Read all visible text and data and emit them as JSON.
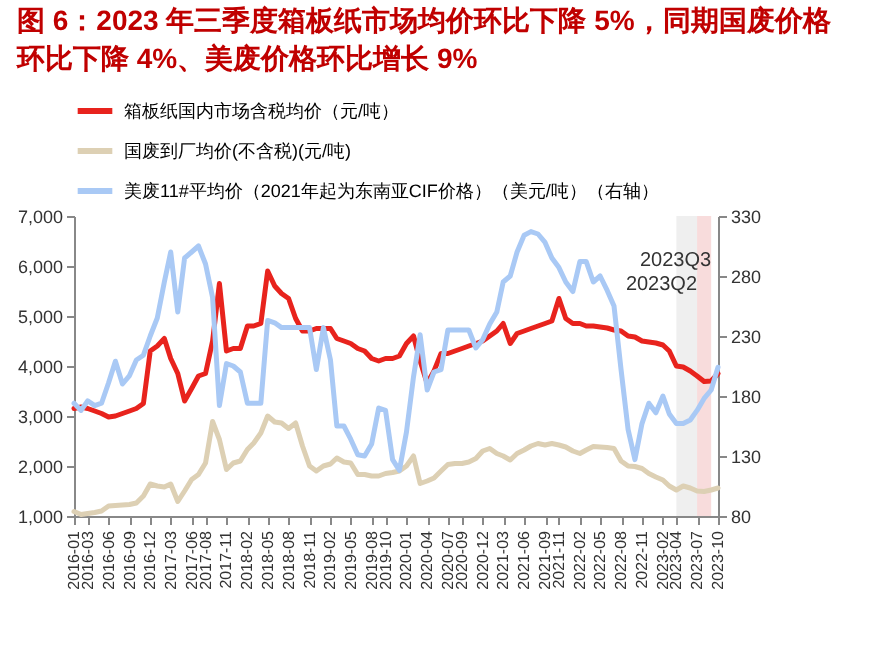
{
  "chart_data": {
    "type": "line",
    "title": "图 6：2023 年三季度箱板纸市场均价环比下降 5%，同期国废价格环比下降 4%、美废价格环比增长 9%",
    "x": [
      "2016-01",
      "2016-02",
      "2016-03",
      "2016-04",
      "2016-05",
      "2016-06",
      "2016-07",
      "2016-08",
      "2016-09",
      "2016-10",
      "2016-11",
      "2016-12",
      "2017-01",
      "2017-02",
      "2017-03",
      "2017-04",
      "2017-05",
      "2017-06",
      "2017-07",
      "2017-08",
      "2017-09",
      "2017-10",
      "2017-11",
      "2017-12",
      "2018-01",
      "2018-02",
      "2018-03",
      "2018-04",
      "2018-05",
      "2018-06",
      "2018-07",
      "2018-08",
      "2018-09",
      "2018-10",
      "2018-11",
      "2018-12",
      "2019-01",
      "2019-02",
      "2019-03",
      "2019-04",
      "2019-05",
      "2019-06",
      "2019-07",
      "2019-08",
      "2019-09",
      "2019-10",
      "2019-11",
      "2019-12",
      "2020-01",
      "2020-02",
      "2020-03",
      "2020-04",
      "2020-05",
      "2020-06",
      "2020-07",
      "2020-08",
      "2020-09",
      "2020-10",
      "2020-11",
      "2020-12",
      "2021-01",
      "2021-02",
      "2021-03",
      "2021-04",
      "2021-05",
      "2021-06",
      "2021-07",
      "2021-08",
      "2021-09",
      "2021-10",
      "2021-11",
      "2021-12",
      "2022-01",
      "2022-02",
      "2022-03",
      "2022-04",
      "2022-05",
      "2022-06",
      "2022-07",
      "2022-08",
      "2022-09",
      "2022-10",
      "2022-11",
      "2022-12",
      "2023-01",
      "2023-02",
      "2023-03",
      "2023-04",
      "2023-05",
      "2023-06",
      "2023-07",
      "2023-08",
      "2023-09",
      "2023-10"
    ],
    "series": [
      {
        "name": "箱板纸国内市场含税均价（元/吨）",
        "color": "#e8231d",
        "values": [
          3150,
          3180,
          3150,
          3100,
          3050,
          2980,
          3000,
          3050,
          3100,
          3150,
          3250,
          4300,
          4400,
          4550,
          4150,
          3850,
          3300,
          3550,
          3800,
          3850,
          4500,
          5650,
          4300,
          4350,
          4350,
          4800,
          4800,
          4850,
          5900,
          5600,
          5450,
          5350,
          4950,
          4700,
          4700,
          4750,
          4750,
          4750,
          4550,
          4500,
          4450,
          4350,
          4300,
          4150,
          4100,
          4150,
          4150,
          4200,
          4450,
          4600,
          4100,
          3650,
          3900,
          4250,
          4250,
          4300,
          4350,
          4400,
          4450,
          4500,
          4600,
          4700,
          4850,
          4450,
          4650,
          4700,
          4750,
          4800,
          4850,
          4900,
          5350,
          4950,
          4850,
          4850,
          4800,
          4800,
          4780,
          4760,
          4720,
          4700,
          4600,
          4580,
          4500,
          4480,
          4460,
          4420,
          4300,
          4000,
          3980,
          3900,
          3800,
          3690,
          3700,
          3850
        ]
      },
      {
        "name": "国废到厂均价(不含税)(元/吨)",
        "color": "#ddd0b4",
        "values": [
          1090,
          1030,
          1050,
          1070,
          1100,
          1200,
          1210,
          1220,
          1230,
          1260,
          1400,
          1640,
          1600,
          1580,
          1640,
          1290,
          1500,
          1730,
          1830,
          2060,
          2890,
          2530,
          1930,
          2060,
          2100,
          2330,
          2460,
          2660,
          3000,
          2880,
          2860,
          2750,
          2860,
          2400,
          2000,
          1900,
          2000,
          2040,
          2160,
          2080,
          2060,
          1830,
          1830,
          1800,
          1800,
          1850,
          1870,
          1900,
          2000,
          2200,
          1650,
          1700,
          1760,
          1900,
          2030,
          2050,
          2050,
          2080,
          2150,
          2300,
          2350,
          2250,
          2200,
          2120,
          2250,
          2320,
          2400,
          2450,
          2420,
          2450,
          2420,
          2380,
          2300,
          2250,
          2320,
          2390,
          2380,
          2370,
          2350,
          2100,
          2000,
          1990,
          1950,
          1850,
          1780,
          1720,
          1600,
          1520,
          1600,
          1560,
          1500,
          1490,
          1520,
          1560
        ]
      },
      {
        "name": "美废11#平均价（2021年起为东南亚CIF价格）（美元/吨）（右轴）",
        "color": "#a9c9f5",
        "axis": "y2",
        "values": [
          174,
          168,
          176,
          172,
          174,
          191,
          209,
          190,
          197,
          210,
          214,
          230,
          245,
          275,
          300,
          250,
          295,
          300,
          305,
          290,
          262,
          172,
          207,
          205,
          200,
          174,
          174,
          174,
          243,
          241,
          237,
          237,
          237,
          237,
          237,
          202,
          237,
          210,
          155,
          155,
          144,
          131,
          130,
          140,
          170,
          168,
          127,
          118,
          150,
          196,
          231,
          185,
          200,
          202,
          235,
          235,
          235,
          235,
          220,
          227,
          240,
          250,
          275,
          280,
          300,
          314,
          317,
          315,
          308,
          295,
          287,
          275,
          267,
          292,
          292,
          275,
          280,
          268,
          255,
          202,
          152,
          127,
          157,
          174,
          166,
          180,
          165,
          157,
          157,
          160,
          168,
          178,
          185,
          204
        ]
      }
    ],
    "xlim": [
      "2016-01",
      "2023-10"
    ],
    "xticks": [
      "2016-01",
      "2016-03",
      "2016-06",
      "2016-09",
      "2016-12",
      "2017-03",
      "2017-06",
      "2017-08",
      "2017-11",
      "2018-02",
      "2018-05",
      "2018-08",
      "2018-11",
      "2019-02",
      "2019-05",
      "2019-08",
      "2019-10",
      "2020-01",
      "2020-04",
      "2020-07",
      "2020-09",
      "2020-12",
      "2021-03",
      "2021-06",
      "2021-09",
      "2021-11",
      "2022-02",
      "2022-05",
      "2022-08",
      "2022-11",
      "2023-02",
      "2023-04",
      "2023-07",
      "2023-10"
    ],
    "ylim": [
      1000,
      7000
    ],
    "yticks": [
      {
        "value": 1000,
        "label": "1,000"
      },
      {
        "value": 2000,
        "label": "2,000"
      },
      {
        "value": 3000,
        "label": "3,000"
      },
      {
        "value": 4000,
        "label": "4,000"
      },
      {
        "value": 5000,
        "label": "5,000"
      },
      {
        "value": 6000,
        "label": "6,000"
      },
      {
        "value": 7000,
        "label": "7,000"
      }
    ],
    "y2lim": [
      80,
      330
    ],
    "y2ticks": [
      80,
      130,
      180,
      230,
      280,
      330
    ],
    "bands": [
      {
        "axis": "x",
        "from": "2023-04",
        "to": "2023-07",
        "label": "2023Q2",
        "color": "#efefef"
      },
      {
        "axis": "x",
        "from": "2023-07",
        "to": "2023-09",
        "label": "2023Q3",
        "color": "#f8dcdc"
      }
    ],
    "grid": false,
    "legend": "top",
    "marker": "none",
    "line_style": "solid"
  }
}
